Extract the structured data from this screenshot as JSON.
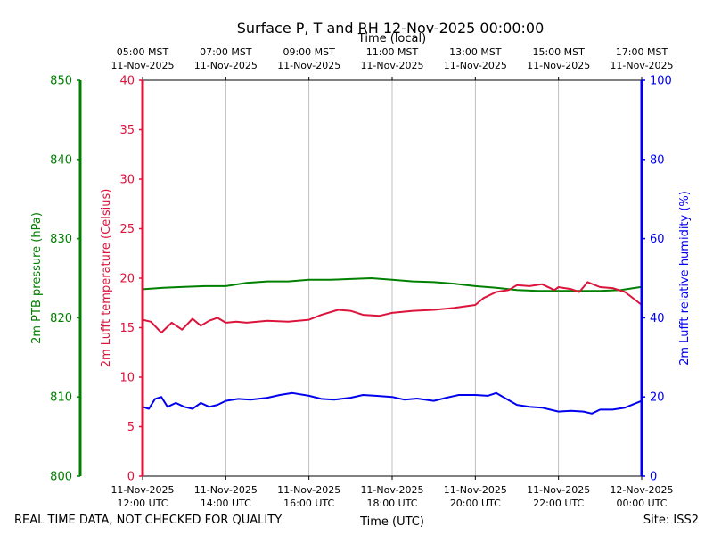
{
  "chart_data": {
    "type": "line",
    "title": "Surface P, T and RH 12-Nov-2025 00:00:00",
    "x_top_label": "Time (local)",
    "x_bottom_label": "Time (UTC)",
    "x_hours_range": [
      12,
      24
    ],
    "x_bottom_ticks": [
      {
        "hour": 12,
        "line1": "11-Nov-2025",
        "line2": "12:00 UTC"
      },
      {
        "hour": 14,
        "line1": "11-Nov-2025",
        "line2": "14:00 UTC"
      },
      {
        "hour": 16,
        "line1": "11-Nov-2025",
        "line2": "16:00 UTC"
      },
      {
        "hour": 18,
        "line1": "11-Nov-2025",
        "line2": "18:00 UTC"
      },
      {
        "hour": 20,
        "line1": "11-Nov-2025",
        "line2": "20:00 UTC"
      },
      {
        "hour": 22,
        "line1": "11-Nov-2025",
        "line2": "22:00 UTC"
      },
      {
        "hour": 24,
        "line1": "12-Nov-2025",
        "line2": "00:00 UTC"
      }
    ],
    "x_top_ticks": [
      {
        "hour": 12,
        "line1": "05:00 MST",
        "line2": "11-Nov-2025"
      },
      {
        "hour": 14,
        "line1": "07:00 MST",
        "line2": "11-Nov-2025"
      },
      {
        "hour": 16,
        "line1": "09:00 MST",
        "line2": "11-Nov-2025"
      },
      {
        "hour": 18,
        "line1": "11:00 MST",
        "line2": "11-Nov-2025"
      },
      {
        "hour": 20,
        "line1": "13:00 MST",
        "line2": "11-Nov-2025"
      },
      {
        "hour": 22,
        "line1": "15:00 MST",
        "line2": "11-Nov-2025"
      },
      {
        "hour": 24,
        "line1": "17:00 MST",
        "line2": "11-Nov-2025"
      }
    ],
    "axes": {
      "pressure": {
        "label": "2m PTB pressure (hPa)",
        "range": [
          800,
          850
        ],
        "ticks": [
          800,
          810,
          820,
          830,
          840,
          850
        ],
        "color": "#008000"
      },
      "temperature": {
        "label": "2m Lufft temperature (Celsius)",
        "range": [
          0,
          40
        ],
        "ticks": [
          0,
          5,
          10,
          15,
          20,
          25,
          30,
          35,
          40
        ],
        "color": "#dc143c"
      },
      "humidity": {
        "label": "2m Lufft relative humidity (%)",
        "range": [
          0,
          100
        ],
        "ticks": [
          0,
          20,
          40,
          60,
          80,
          100
        ],
        "color": "#0000ee"
      }
    },
    "grid": "vertical",
    "series": [
      {
        "name": "2m PTB pressure (hPa)",
        "axis": "pressure",
        "color": "#008000",
        "x": [
          12,
          12.5,
          13,
          13.5,
          14,
          14.5,
          15,
          15.5,
          16,
          16.5,
          17,
          17.5,
          18,
          18.5,
          19,
          19.5,
          20,
          20.5,
          21,
          21.5,
          22,
          22.5,
          23,
          23.5,
          24
        ],
        "values": [
          823.6,
          823.8,
          823.9,
          824.0,
          824.0,
          824.4,
          824.6,
          824.6,
          824.8,
          824.8,
          824.9,
          825.0,
          824.8,
          824.6,
          824.5,
          824.3,
          824.0,
          823.8,
          823.5,
          823.4,
          823.4,
          823.4,
          823.4,
          823.5,
          823.9
        ]
      },
      {
        "name": "2m Lufft temperature (Celsius)",
        "axis": "temperature",
        "color": "#dc143c",
        "x": [
          12,
          12.2,
          12.45,
          12.7,
          12.95,
          13.2,
          13.4,
          13.6,
          13.8,
          14,
          14.25,
          14.5,
          15,
          15.5,
          16,
          16.3,
          16.7,
          17,
          17.3,
          17.7,
          18,
          18.5,
          19,
          19.5,
          20,
          20.2,
          20.5,
          20.8,
          21,
          21.3,
          21.6,
          21.9,
          22,
          22.3,
          22.5,
          22.7,
          23,
          23.3,
          23.6,
          24
        ],
        "values": [
          15.8,
          15.6,
          14.5,
          15.5,
          14.8,
          15.9,
          15.2,
          15.7,
          16.0,
          15.5,
          15.6,
          15.5,
          15.7,
          15.6,
          15.8,
          16.3,
          16.8,
          16.7,
          16.3,
          16.2,
          16.5,
          16.7,
          16.8,
          17.0,
          17.3,
          18.0,
          18.6,
          18.8,
          19.3,
          19.2,
          19.4,
          18.8,
          19.1,
          18.9,
          18.6,
          19.6,
          19.1,
          19.0,
          18.6,
          17.3
        ]
      },
      {
        "name": "2m Lufft relative humidity (%)",
        "axis": "humidity",
        "color": "#0000ee",
        "x": [
          12,
          12.15,
          12.3,
          12.45,
          12.6,
          12.8,
          13,
          13.2,
          13.4,
          13.6,
          13.8,
          14,
          14.3,
          14.6,
          15,
          15.3,
          15.6,
          16,
          16.3,
          16.6,
          17,
          17.3,
          17.6,
          18,
          18.3,
          18.6,
          19,
          19.3,
          19.6,
          20,
          20.3,
          20.5,
          20.7,
          21,
          21.3,
          21.6,
          22,
          22.3,
          22.6,
          22.8,
          23,
          23.3,
          23.6,
          24
        ],
        "values": [
          17.5,
          17.0,
          19.5,
          20.0,
          17.5,
          18.5,
          17.5,
          17.0,
          18.5,
          17.5,
          18.0,
          19.0,
          19.5,
          19.3,
          19.8,
          20.5,
          21.0,
          20.3,
          19.5,
          19.3,
          19.8,
          20.5,
          20.3,
          20.0,
          19.3,
          19.6,
          19.0,
          19.8,
          20.5,
          20.5,
          20.3,
          21.0,
          19.8,
          18.0,
          17.5,
          17.3,
          16.3,
          16.5,
          16.3,
          15.8,
          16.8,
          16.8,
          17.3,
          19.0
        ]
      }
    ]
  },
  "footer": {
    "quality_note": "REAL TIME DATA, NOT CHECKED FOR QUALITY",
    "site": "Site: ISS2"
  }
}
